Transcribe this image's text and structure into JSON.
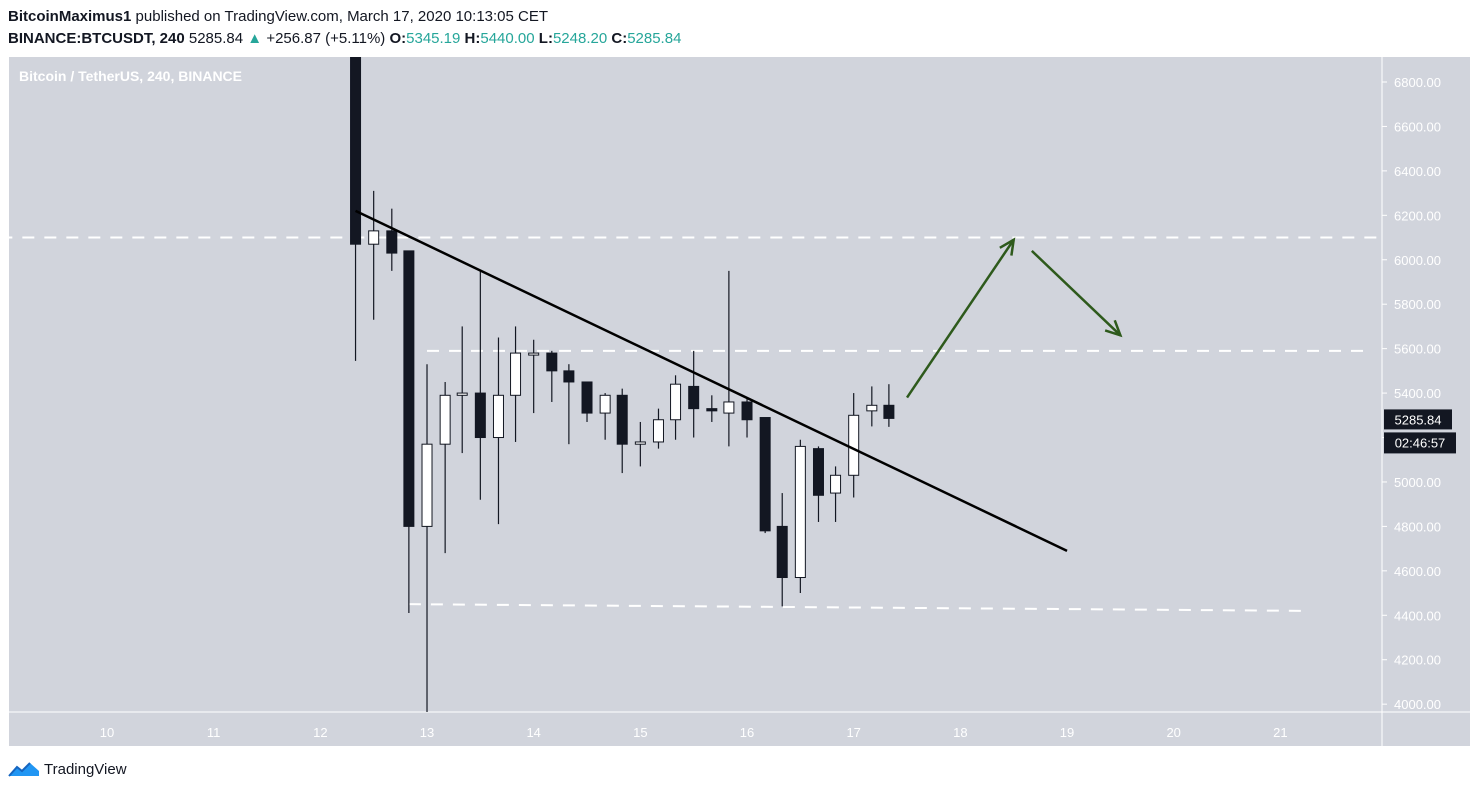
{
  "header": {
    "publisher": "BitcoinMaximus1",
    "published_text": " published on TradingView.com, March 17, 2020 10:13:05 CET",
    "symbol": "BINANCE:BTCUSDT, 240",
    "last": "5285.84",
    "arrow": "▲",
    "change": "+256.87 (+5.11%)",
    "o_label": "O:",
    "o_val": "5345.19",
    "h_label": "H:",
    "h_val": "5440.00",
    "l_label": "L:",
    "l_val": "5248.20",
    "c_label": "C:",
    "c_val": "5285.84"
  },
  "footer": {
    "brand": "TradingView",
    "logo_icon": "tradingview-logo-icon"
  },
  "chart_data": {
    "type": "candlestick",
    "title": "Bitcoin / TetherUS, 240, BINANCE",
    "ylim": [
      3950,
      6950
    ],
    "xlim": [
      9.0,
      22.0
    ],
    "y_ticks": [
      "6800.00",
      "6600.00",
      "6400.00",
      "6200.00",
      "6000.00",
      "5800.00",
      "5600.00",
      "5400.00",
      "5200.00",
      "5000.00",
      "4800.00",
      "4600.00",
      "4400.00",
      "4200.00",
      "4000.00"
    ],
    "x_ticks": [
      "10",
      "11",
      "12",
      "13",
      "14",
      "15",
      "16",
      "17",
      "18",
      "19",
      "20",
      "21"
    ],
    "current_price_label": "5285.84",
    "countdown_label": "02:46:57",
    "candles": [
      {
        "t": 12.33,
        "o": 6950,
        "h": 6950,
        "l": 5545,
        "c": 6070
      },
      {
        "t": 12.5,
        "o": 6070,
        "h": 6310,
        "l": 5730,
        "c": 6130
      },
      {
        "t": 12.67,
        "o": 6130,
        "h": 6230,
        "l": 5950,
        "c": 6030
      },
      {
        "t": 12.83,
        "o": 6040,
        "h": 6040,
        "l": 4410,
        "c": 4800
      },
      {
        "t": 13.0,
        "o": 4800,
        "h": 5530,
        "l": 3950,
        "c": 5170
      },
      {
        "t": 13.17,
        "o": 5170,
        "h": 5450,
        "l": 4680,
        "c": 5390
      },
      {
        "t": 13.33,
        "o": 5390,
        "h": 5700,
        "l": 5130,
        "c": 5400
      },
      {
        "t": 13.5,
        "o": 5400,
        "h": 5950,
        "l": 4920,
        "c": 5200
      },
      {
        "t": 13.67,
        "o": 5200,
        "h": 5650,
        "l": 4810,
        "c": 5390
      },
      {
        "t": 13.83,
        "o": 5390,
        "h": 5700,
        "l": 5180,
        "c": 5580
      },
      {
        "t": 14.0,
        "o": 5580,
        "h": 5640,
        "l": 5310,
        "c": 5580
      },
      {
        "t": 14.17,
        "o": 5580,
        "h": 5590,
        "l": 5360,
        "c": 5500
      },
      {
        "t": 14.33,
        "o": 5500,
        "h": 5530,
        "l": 5170,
        "c": 5450
      },
      {
        "t": 14.5,
        "o": 5450,
        "h": 5450,
        "l": 5270,
        "c": 5310
      },
      {
        "t": 14.67,
        "o": 5310,
        "h": 5400,
        "l": 5190,
        "c": 5390
      },
      {
        "t": 14.83,
        "o": 5390,
        "h": 5420,
        "l": 5040,
        "c": 5170
      },
      {
        "t": 15.0,
        "o": 5170,
        "h": 5270,
        "l": 5070,
        "c": 5180
      },
      {
        "t": 15.17,
        "o": 5180,
        "h": 5330,
        "l": 5150,
        "c": 5280
      },
      {
        "t": 15.33,
        "o": 5280,
        "h": 5480,
        "l": 5190,
        "c": 5440
      },
      {
        "t": 15.5,
        "o": 5430,
        "h": 5590,
        "l": 5200,
        "c": 5330
      },
      {
        "t": 15.67,
        "o": 5330,
        "h": 5390,
        "l": 5270,
        "c": 5320
      },
      {
        "t": 15.83,
        "o": 5310,
        "h": 5950,
        "l": 5160,
        "c": 5360
      },
      {
        "t": 16.0,
        "o": 5360,
        "h": 5380,
        "l": 5200,
        "c": 5280
      },
      {
        "t": 16.17,
        "o": 5290,
        "h": 5290,
        "l": 4770,
        "c": 4780
      },
      {
        "t": 16.33,
        "o": 4800,
        "h": 4950,
        "l": 4440,
        "c": 4570
      },
      {
        "t": 16.5,
        "o": 4570,
        "h": 5190,
        "l": 4500,
        "c": 5160
      },
      {
        "t": 16.67,
        "o": 5150,
        "h": 5160,
        "l": 4820,
        "c": 4940
      },
      {
        "t": 16.83,
        "o": 4950,
        "h": 5070,
        "l": 4820,
        "c": 5030
      },
      {
        "t": 17.0,
        "o": 5030,
        "h": 5400,
        "l": 4930,
        "c": 5300
      },
      {
        "t": 17.17,
        "o": 5320,
        "h": 5430,
        "l": 5250,
        "c": 5345
      },
      {
        "t": 17.33,
        "o": 5345,
        "h": 5440,
        "l": 5248,
        "c": 5286
      }
    ],
    "annotations": {
      "trendline": {
        "x1": 12.33,
        "y1": 6220,
        "x2": 19.0,
        "y2": 4690
      },
      "resistance_6100": {
        "x1": 9.0,
        "x2": 22.0,
        "y": 6100
      },
      "level_5590": {
        "x1": 13.0,
        "x2": 21.8,
        "y": 5590
      },
      "support_4430": {
        "x1": 12.83,
        "y1": 4450,
        "x2": 21.2,
        "y2": 4420
      },
      "arrow_up": {
        "x1": 17.5,
        "y1": 5380,
        "x2": 18.5,
        "y2": 6090
      },
      "arrow_down": {
        "x1": 18.67,
        "y1": 6040,
        "x2": 19.5,
        "y2": 5660
      },
      "arrow_color": "#2e5a1c"
    },
    "colors": {
      "background": "#d1d4dc",
      "up_fill": "#ffffff",
      "down_fill": "#131722",
      "outline": "#131722",
      "dashed": "#ffffff"
    },
    "grid": false
  }
}
